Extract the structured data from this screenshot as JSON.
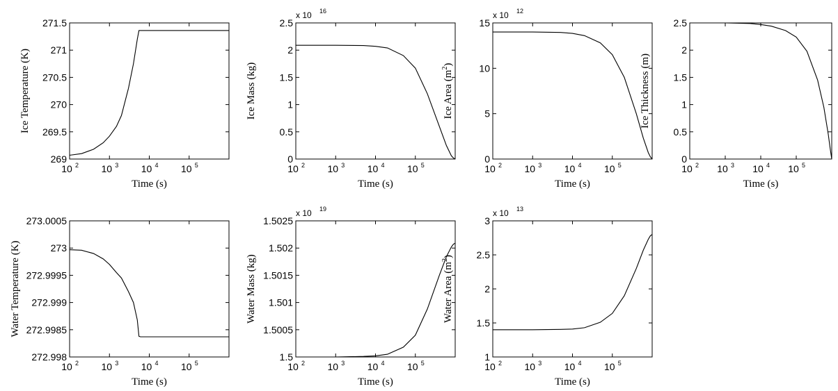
{
  "chart_data": [
    {
      "type": "line",
      "xlabel": "Time (s)",
      "ylabel": "Ice Temperature (K)",
      "ylabel_sup": "",
      "ylabel_tail": "",
      "multiplier_base": "",
      "multiplier_exp": "",
      "x_scale": "log",
      "xlim": [
        100,
        1000000
      ],
      "ylim": [
        269,
        271.5
      ],
      "xticks": [
        {
          "base": "10",
          "exp": "2"
        },
        {
          "base": "10",
          "exp": "3"
        },
        {
          "base": "10",
          "exp": "4"
        },
        {
          "base": "10",
          "exp": "5"
        }
      ],
      "yticks": [
        "269",
        "269.5",
        "270",
        "270.5",
        "271",
        "271.5"
      ],
      "x": [
        100,
        200,
        400,
        700,
        1000,
        1500,
        2000,
        3000,
        4000,
        5000,
        5500,
        6000,
        100000,
        1000000
      ],
      "y": [
        269.07,
        269.1,
        269.18,
        269.3,
        269.42,
        269.6,
        269.8,
        270.3,
        270.75,
        271.2,
        271.36,
        271.36,
        271.36,
        271.36
      ]
    },
    {
      "type": "line",
      "xlabel": "Time (s)",
      "ylabel": "Ice Mass (kg)",
      "ylabel_sup": "",
      "ylabel_tail": "",
      "multiplier_base": "x 10",
      "multiplier_exp": "16",
      "x_scale": "log",
      "xlim": [
        100,
        1000000
      ],
      "ylim": [
        0,
        2.5
      ],
      "xticks": [
        {
          "base": "10",
          "exp": "2"
        },
        {
          "base": "10",
          "exp": "3"
        },
        {
          "base": "10",
          "exp": "4"
        },
        {
          "base": "10",
          "exp": "5"
        }
      ],
      "yticks": [
        "0",
        "0.5",
        "1",
        "1.5",
        "2",
        "2.5"
      ],
      "x": [
        100,
        1000,
        5000,
        10000,
        20000,
        50000,
        100000,
        200000,
        400000,
        600000,
        800000,
        900000,
        1000000
      ],
      "y": [
        2.09,
        2.09,
        2.085,
        2.07,
        2.04,
        1.9,
        1.67,
        1.2,
        0.6,
        0.25,
        0.06,
        0.02,
        0.0
      ]
    },
    {
      "type": "line",
      "xlabel": "Time (s)",
      "ylabel": "Ice Area (m",
      "ylabel_sup": "2",
      "ylabel_tail": ")",
      "multiplier_base": "x 10",
      "multiplier_exp": "12",
      "x_scale": "log",
      "xlim": [
        100,
        1000000
      ],
      "ylim": [
        0,
        15
      ],
      "xticks": [
        {
          "base": "10",
          "exp": "2"
        },
        {
          "base": "10",
          "exp": "3"
        },
        {
          "base": "10",
          "exp": "4"
        },
        {
          "base": "10",
          "exp": "5"
        }
      ],
      "yticks": [
        "0",
        "5",
        "10",
        "15"
      ],
      "x": [
        100,
        1000,
        5000,
        10000,
        20000,
        50000,
        100000,
        200000,
        400000,
        600000,
        800000,
        900000,
        1000000
      ],
      "y": [
        14.0,
        14.0,
        13.95,
        13.85,
        13.6,
        12.8,
        11.5,
        9.0,
        5.0,
        2.3,
        0.7,
        0.25,
        0.0
      ]
    },
    {
      "type": "line",
      "xlabel": "Time (s)",
      "ylabel": "Ice Thickness (m)",
      "ylabel_sup": "",
      "ylabel_tail": "",
      "multiplier_base": "",
      "multiplier_exp": "",
      "x_scale": "log",
      "xlim": [
        100,
        1000000
      ],
      "ylim": [
        0,
        2.5
      ],
      "xticks": [
        {
          "base": "10",
          "exp": "2"
        },
        {
          "base": "10",
          "exp": "3"
        },
        {
          "base": "10",
          "exp": "4"
        },
        {
          "base": "10",
          "exp": "5"
        }
      ],
      "yticks": [
        "0",
        "0.5",
        "1",
        "1.5",
        "2",
        "2.5"
      ],
      "x": [
        100,
        1000,
        5000,
        10000,
        20000,
        50000,
        100000,
        200000,
        400000,
        600000,
        800000,
        900000,
        1000000
      ],
      "y": [
        2.5,
        2.5,
        2.49,
        2.47,
        2.44,
        2.36,
        2.24,
        1.98,
        1.45,
        0.95,
        0.45,
        0.2,
        0.0
      ]
    },
    {
      "type": "line",
      "xlabel": "Time (s)",
      "ylabel": "Water Temperature (K)",
      "ylabel_sup": "",
      "ylabel_tail": "",
      "multiplier_base": "",
      "multiplier_exp": "",
      "x_scale": "log",
      "xlim": [
        100,
        1000000
      ],
      "ylim": [
        272.998,
        273.0005
      ],
      "xticks": [
        {
          "base": "10",
          "exp": "2"
        },
        {
          "base": "10",
          "exp": "3"
        },
        {
          "base": "10",
          "exp": "4"
        },
        {
          "base": "10",
          "exp": "5"
        }
      ],
      "yticks": [
        "272.998",
        "272.9985",
        "272.999",
        "272.9995",
        "273",
        "273.0005"
      ],
      "x": [
        100,
        200,
        400,
        700,
        1000,
        1500,
        2000,
        3000,
        4000,
        5000,
        5500,
        6000,
        100000,
        1000000
      ],
      "y": [
        272.99997,
        272.99996,
        272.9999,
        272.9998,
        272.9997,
        272.99955,
        272.99945,
        272.9992,
        272.999,
        272.99868,
        272.99838,
        272.99837,
        272.99837,
        272.99837
      ]
    },
    {
      "type": "line",
      "xlabel": "Time (s)",
      "ylabel": "Water Mass (kg)",
      "ylabel_sup": "",
      "ylabel_tail": "",
      "multiplier_base": "x 10",
      "multiplier_exp": "19",
      "x_scale": "log",
      "xlim": [
        100,
        1000000
      ],
      "ylim": [
        1.5,
        1.5025
      ],
      "xticks": [
        {
          "base": "10",
          "exp": "2"
        },
        {
          "base": "10",
          "exp": "3"
        },
        {
          "base": "10",
          "exp": "4"
        },
        {
          "base": "10",
          "exp": "5"
        }
      ],
      "yticks": [
        "1.5",
        "1.5005",
        "1.501",
        "1.5015",
        "1.502",
        "1.5025"
      ],
      "x": [
        100,
        1000,
        5000,
        10000,
        20000,
        50000,
        100000,
        200000,
        400000,
        600000,
        800000,
        900000,
        1000000
      ],
      "y": [
        1.5,
        1.5,
        1.50001,
        1.50002,
        1.50005,
        1.50018,
        1.5004,
        1.50088,
        1.5015,
        1.50184,
        1.50202,
        1.50207,
        1.50209
      ]
    },
    {
      "type": "line",
      "xlabel": "Time (s)",
      "ylabel": "Water Area (m",
      "ylabel_sup": "2",
      "ylabel_tail": ")",
      "multiplier_base": "x 10",
      "multiplier_exp": "13",
      "x_scale": "log",
      "xlim": [
        100,
        1000000
      ],
      "ylim": [
        1,
        3
      ],
      "xticks": [
        {
          "base": "10",
          "exp": "2"
        },
        {
          "base": "10",
          "exp": "3"
        },
        {
          "base": "10",
          "exp": "4"
        },
        {
          "base": "10",
          "exp": "5"
        }
      ],
      "yticks": [
        "1",
        "1.5",
        "2",
        "2.5",
        "3"
      ],
      "x": [
        100,
        1000,
        5000,
        10000,
        20000,
        50000,
        100000,
        200000,
        400000,
        600000,
        800000,
        900000,
        1000000
      ],
      "y": [
        1.4,
        1.4,
        1.405,
        1.41,
        1.43,
        1.51,
        1.64,
        1.9,
        2.3,
        2.57,
        2.73,
        2.78,
        2.8
      ]
    }
  ]
}
